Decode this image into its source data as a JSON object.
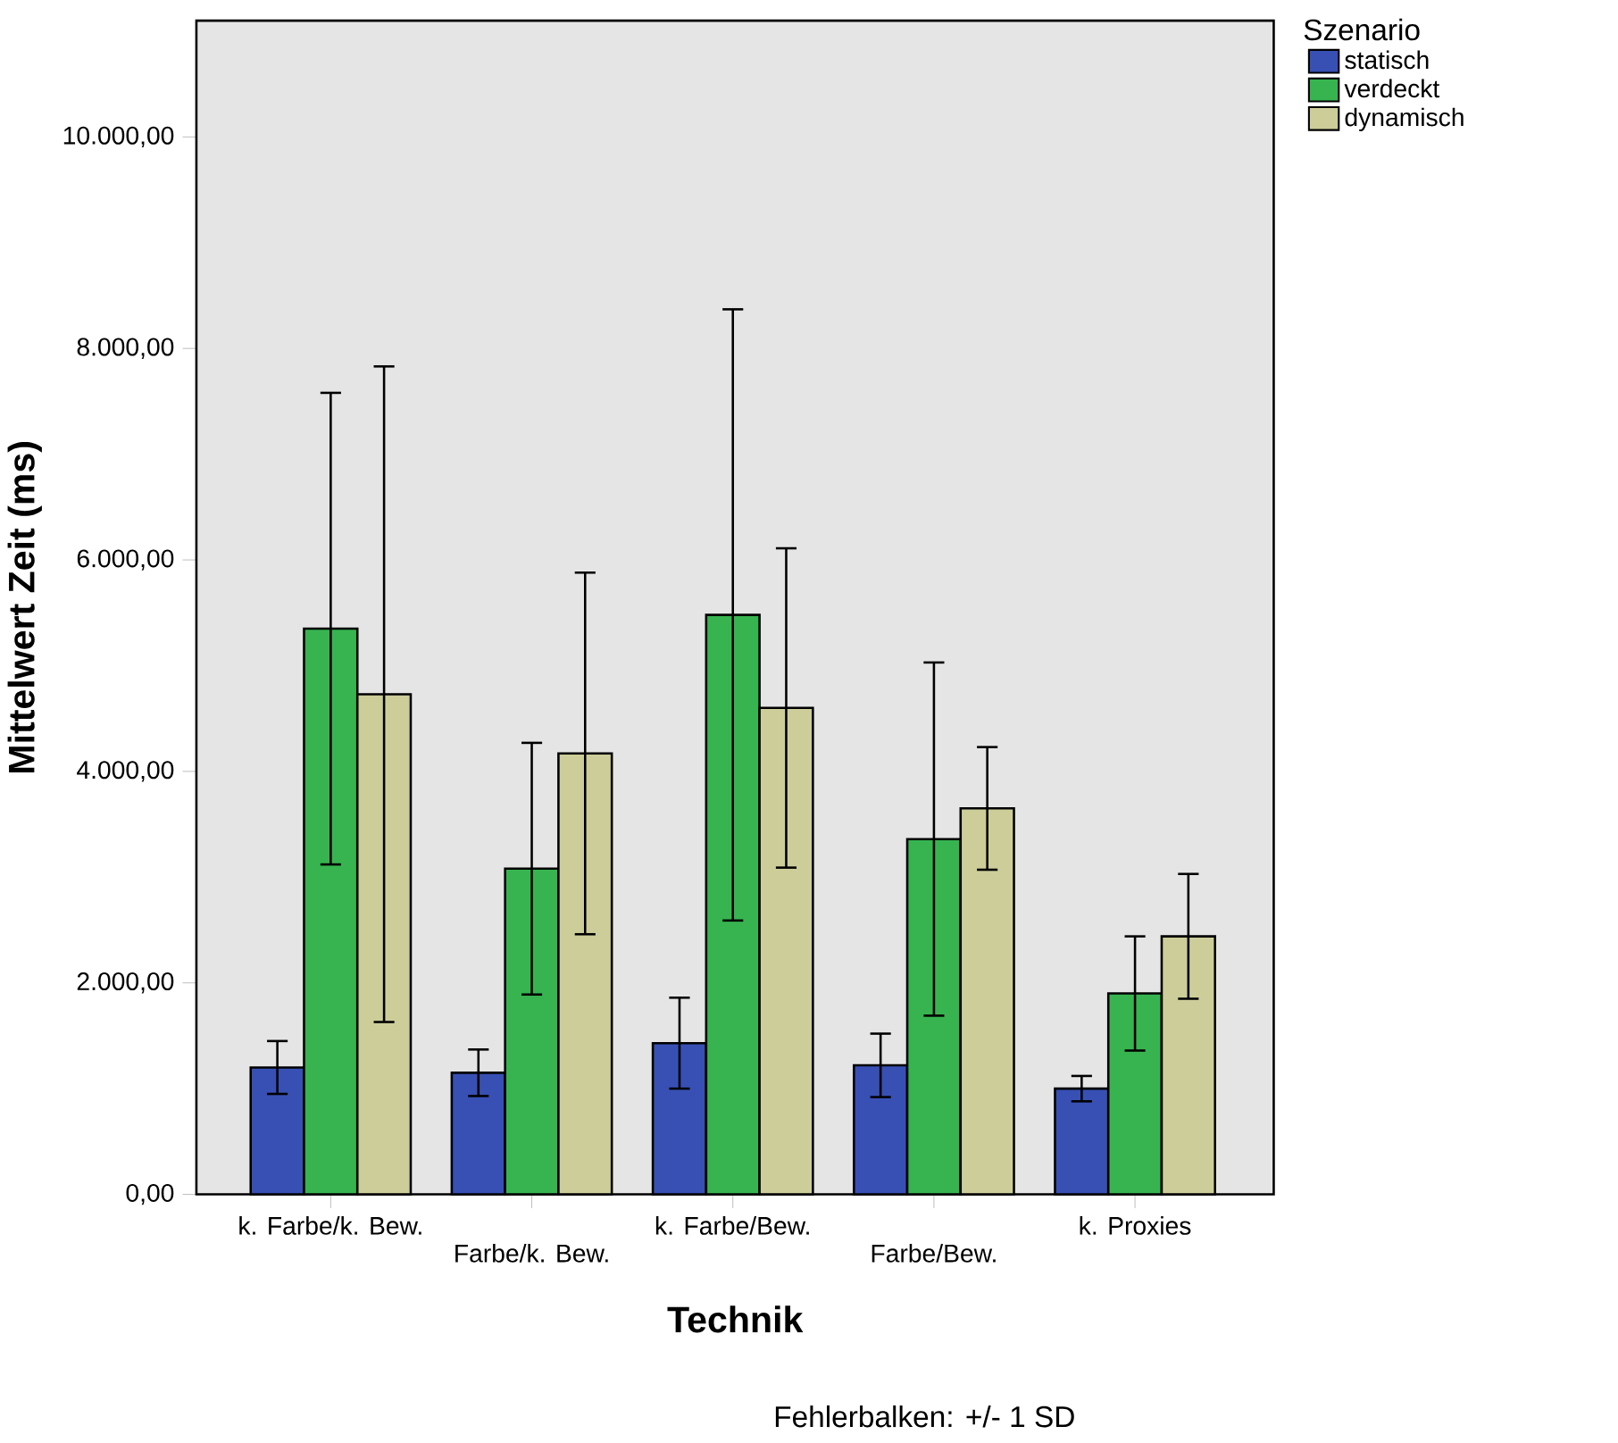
{
  "chart_data": {
    "type": "bar",
    "xlabel": "Technik",
    "ylabel": "Mittelwert Zeit (ms)",
    "legend_title": "Szenario",
    "categories": [
      "k. Farbe/k. Bew.",
      "Farbe/k. Bew.",
      "k. Farbe/Bew.",
      "Farbe/Bew.",
      "k. Proxies"
    ],
    "series": [
      {
        "name": "statisch",
        "color": "#3850b4",
        "values": [
          1200,
          1150,
          1430,
          1220,
          1000
        ],
        "errors": [
          250,
          220,
          430,
          300,
          120
        ]
      },
      {
        "name": "verdeckt",
        "color": "#37b450",
        "values": [
          5350,
          3080,
          5480,
          3360,
          1900
        ],
        "errors": [
          2230,
          1190,
          2890,
          1670,
          540
        ]
      },
      {
        "name": "dynamisch",
        "color": "#cdcd9a",
        "values": [
          4730,
          4170,
          4600,
          3650,
          2440
        ],
        "errors": [
          3100,
          1710,
          1510,
          580,
          590
        ]
      }
    ],
    "ylim": [
      0,
      11100
    ],
    "yticks": [
      {
        "value": 0,
        "label": "0,00"
      },
      {
        "value": 2000,
        "label": "2.000,00"
      },
      {
        "value": 4000,
        "label": "4.000,00"
      },
      {
        "value": 6000,
        "label": "6.000,00"
      },
      {
        "value": 8000,
        "label": "8.000,00"
      },
      {
        "value": 10000,
        "label": "10.000,00"
      }
    ],
    "legend": "top right",
    "grid": false,
    "annotations": [
      "Fehlerbalken: +/- 1 SD"
    ]
  }
}
